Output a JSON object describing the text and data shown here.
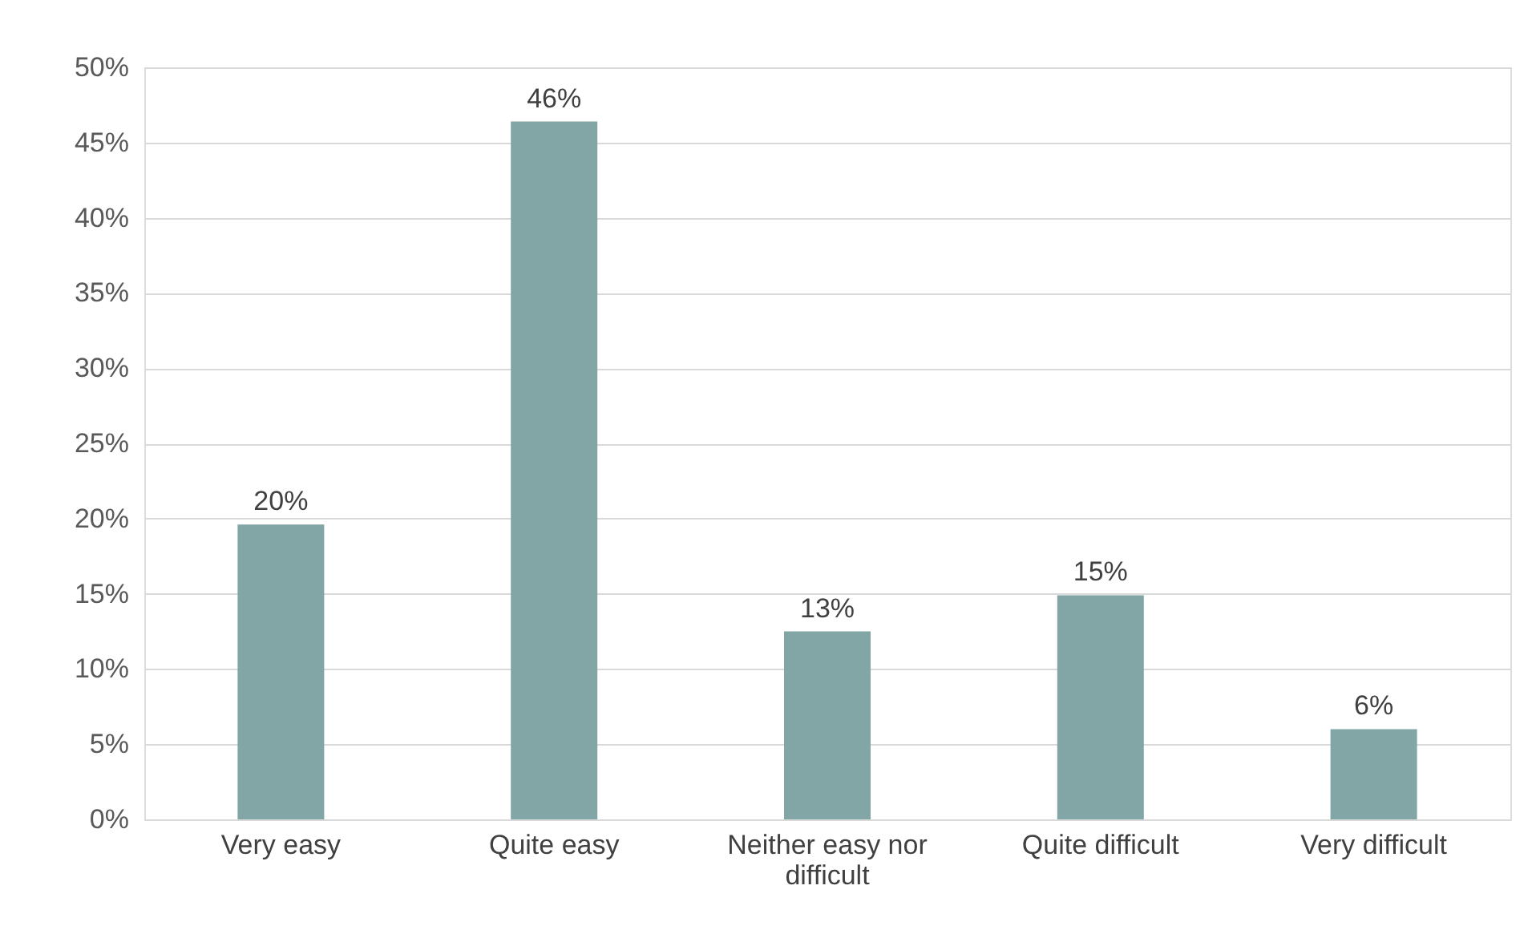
{
  "chart_data": {
    "type": "bar",
    "categories": [
      "Very easy",
      "Quite easy",
      "Neither easy nor difficult",
      "Quite difficult",
      "Very difficult"
    ],
    "values": [
      19.6,
      46.4,
      12.5,
      14.9,
      6.0
    ],
    "value_labels": [
      "20%",
      "46%",
      "13%",
      "15%",
      "6%"
    ],
    "color": "#82a5a6",
    "ylim": [
      0,
      50
    ],
    "yticks": [
      {
        "value": 0,
        "label": "0%"
      },
      {
        "value": 5,
        "label": "5%"
      },
      {
        "value": 10,
        "label": "10%"
      },
      {
        "value": 15,
        "label": "15%"
      },
      {
        "value": 20,
        "label": "20%"
      },
      {
        "value": 25,
        "label": "25%"
      },
      {
        "value": 30,
        "label": "30%"
      },
      {
        "value": 35,
        "label": "35%"
      },
      {
        "value": 40,
        "label": "40%"
      },
      {
        "value": 45,
        "label": "45%"
      },
      {
        "value": 50,
        "label": "50%"
      }
    ],
    "grid": "y"
  }
}
